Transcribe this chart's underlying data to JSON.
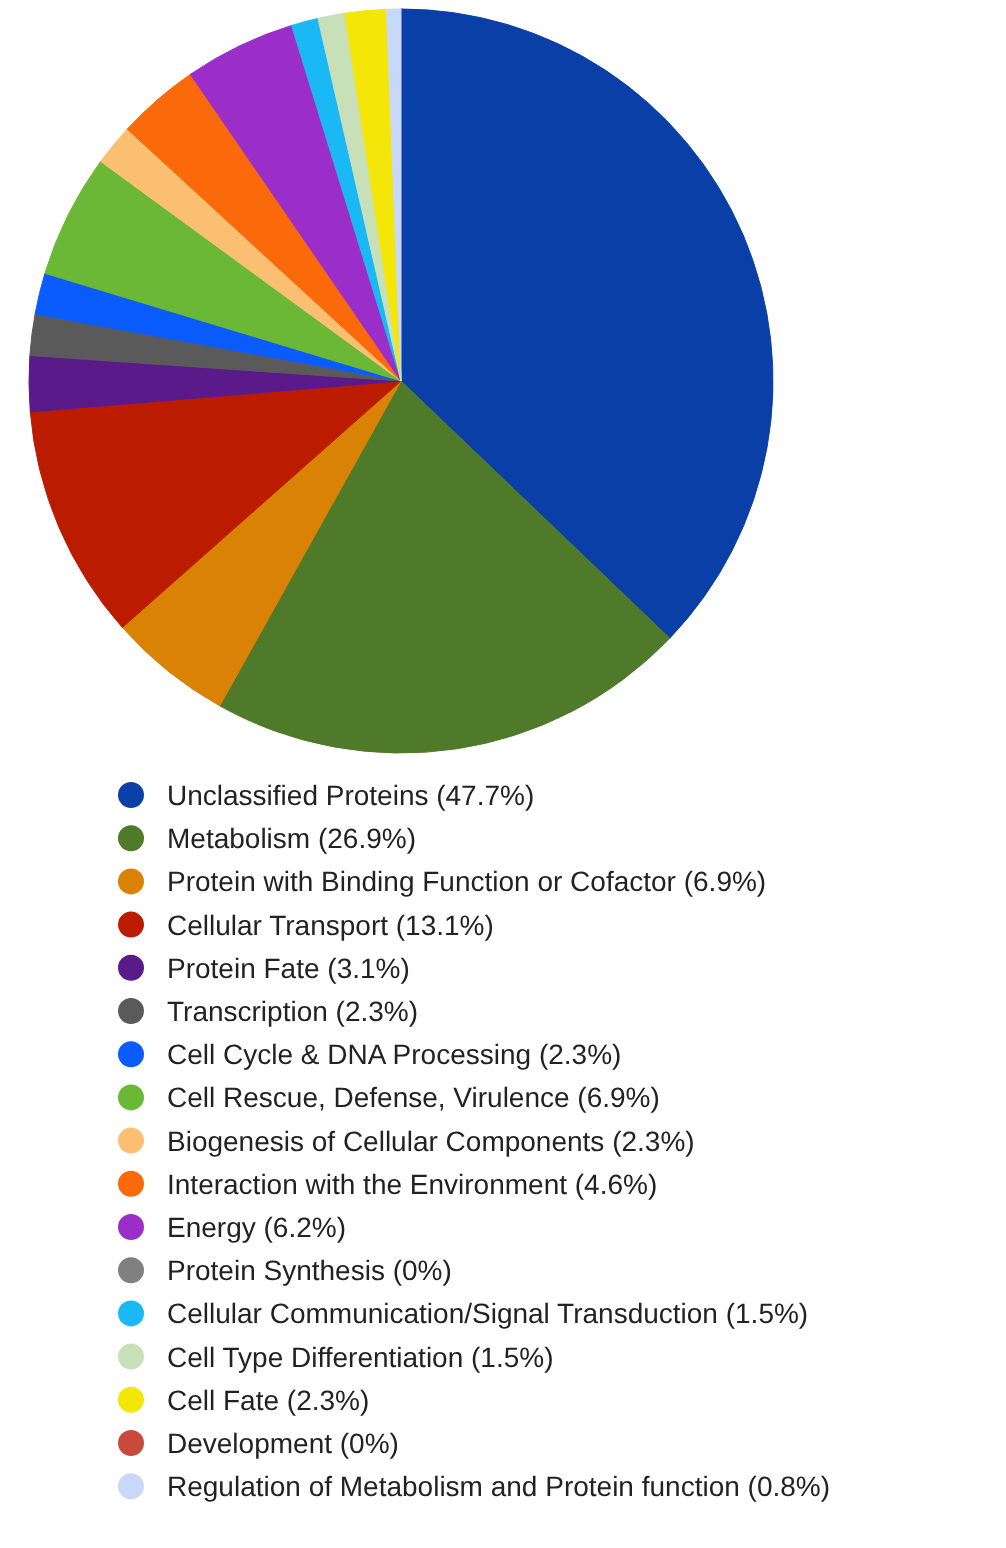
{
  "chart_data": {
    "type": "pie",
    "categories": [
      "Unclassified Proteins (47.7%)",
      "Metabolism (26.9%)",
      "Protein with Binding Function or Cofactor (6.9%)",
      "Cellular Transport (13.1%)",
      "Protein Fate (3.1%)",
      "Transcription (2.3%)",
      "Cell Cycle & DNA Processing (2.3%)",
      "Cell Rescue, Defense, Virulence (6.9%)",
      "Biogenesis of Cellular Components (2.3%)",
      "Interaction with the Environment (4.6%)",
      "Energy (6.2%)",
      "Protein Synthesis (0%)",
      "Cellular Communication/Signal Transduction (1.5%)",
      "Cell Type Differentiation (1.5%)",
      "Cell Fate (2.3%)",
      "Development (0%)",
      "Regulation of Metabolism and Protein function (0.8%)"
    ],
    "values": [
      47.7,
      26.9,
      6.9,
      13.1,
      3.1,
      2.3,
      2.3,
      6.9,
      2.3,
      4.6,
      6.2,
      0,
      1.5,
      1.5,
      2.3,
      0,
      0.8
    ],
    "colors": [
      "#0a3fa8",
      "#4e7a2a",
      "#d98205",
      "#bb1c00",
      "#5a1a8a",
      "#5a5a5a",
      "#0a5cff",
      "#6ab835",
      "#fbbf72",
      "#fa6a0a",
      "#9b2ec8",
      "#808080",
      "#1ab8f5",
      "#c8e0b8",
      "#f5e60a",
      "#c84a3a",
      "#c8d8f8"
    ],
    "legend": "bottom"
  }
}
